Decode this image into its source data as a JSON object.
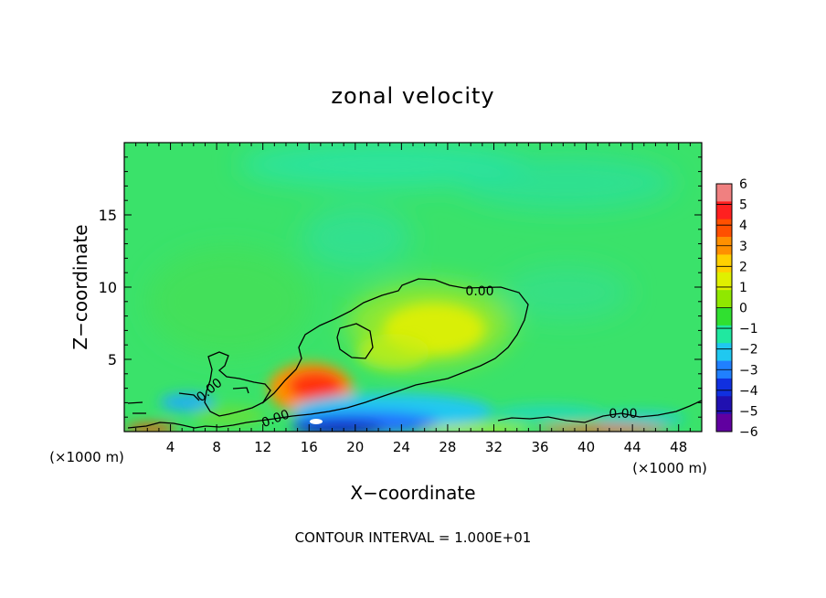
{
  "chart_data": {
    "type": "heatmap",
    "title": "zonal velocity",
    "xlabel": "X−coordinate",
    "ylabel": "Z−coordinate",
    "x_unit": "(×1000 m)",
    "x_unit_right": "(×1000 m)",
    "xlim": [
      0,
      50
    ],
    "ylim": [
      0,
      20
    ],
    "xticks": [
      4,
      8,
      12,
      16,
      20,
      24,
      28,
      32,
      36,
      40,
      44,
      48
    ],
    "xtick_labels": [
      "4",
      "8",
      "12",
      "16",
      "20",
      "24",
      "28",
      "32",
      "36",
      "40",
      "44",
      "48"
    ],
    "yticks": [
      5,
      10,
      15
    ],
    "ytick_labels": [
      "5",
      "10",
      "15"
    ],
    "colorbar": {
      "min": -6,
      "max": 6,
      "tick_values": [
        6,
        5,
        4,
        3,
        2,
        1,
        0,
        -1,
        -2,
        -3,
        -4,
        -5,
        -6
      ],
      "tick_labels": [
        "6",
        "5",
        "4",
        "3",
        "2",
        "1",
        "0",
        "−1",
        "−2",
        "−3",
        "−4",
        "−5",
        "−6"
      ],
      "colors": [
        "#f08080",
        "#ff2020",
        "#ff5000",
        "#ff9000",
        "#ffd000",
        "#e0f000",
        "#90e800",
        "#30e030",
        "#20e8a0",
        "#20c8f0",
        "#2080ff",
        "#1030e0",
        "#2010b0",
        "#6000a0"
      ]
    },
    "contour_level_label": "0.00",
    "contour_labels": [
      "0.00",
      "0.00",
      "0.00",
      "0.00"
    ],
    "features": [
      {
        "x": 16.5,
        "z": 3.2,
        "value": 4.2
      },
      {
        "x": 26.5,
        "z": 7.2,
        "value": 1.8
      },
      {
        "x": 17.5,
        "z": 0.6,
        "value": -5.5
      },
      {
        "x": 5.0,
        "z": 2.3,
        "value": -3.0
      },
      {
        "x": 30.0,
        "z": 12.5,
        "value": -1.0
      },
      {
        "x": 20.0,
        "z": 18.5,
        "value": -1.3
      }
    ]
  },
  "footer": {
    "contour_interval": "CONTOUR INTERVAL = 1.000E+01"
  }
}
